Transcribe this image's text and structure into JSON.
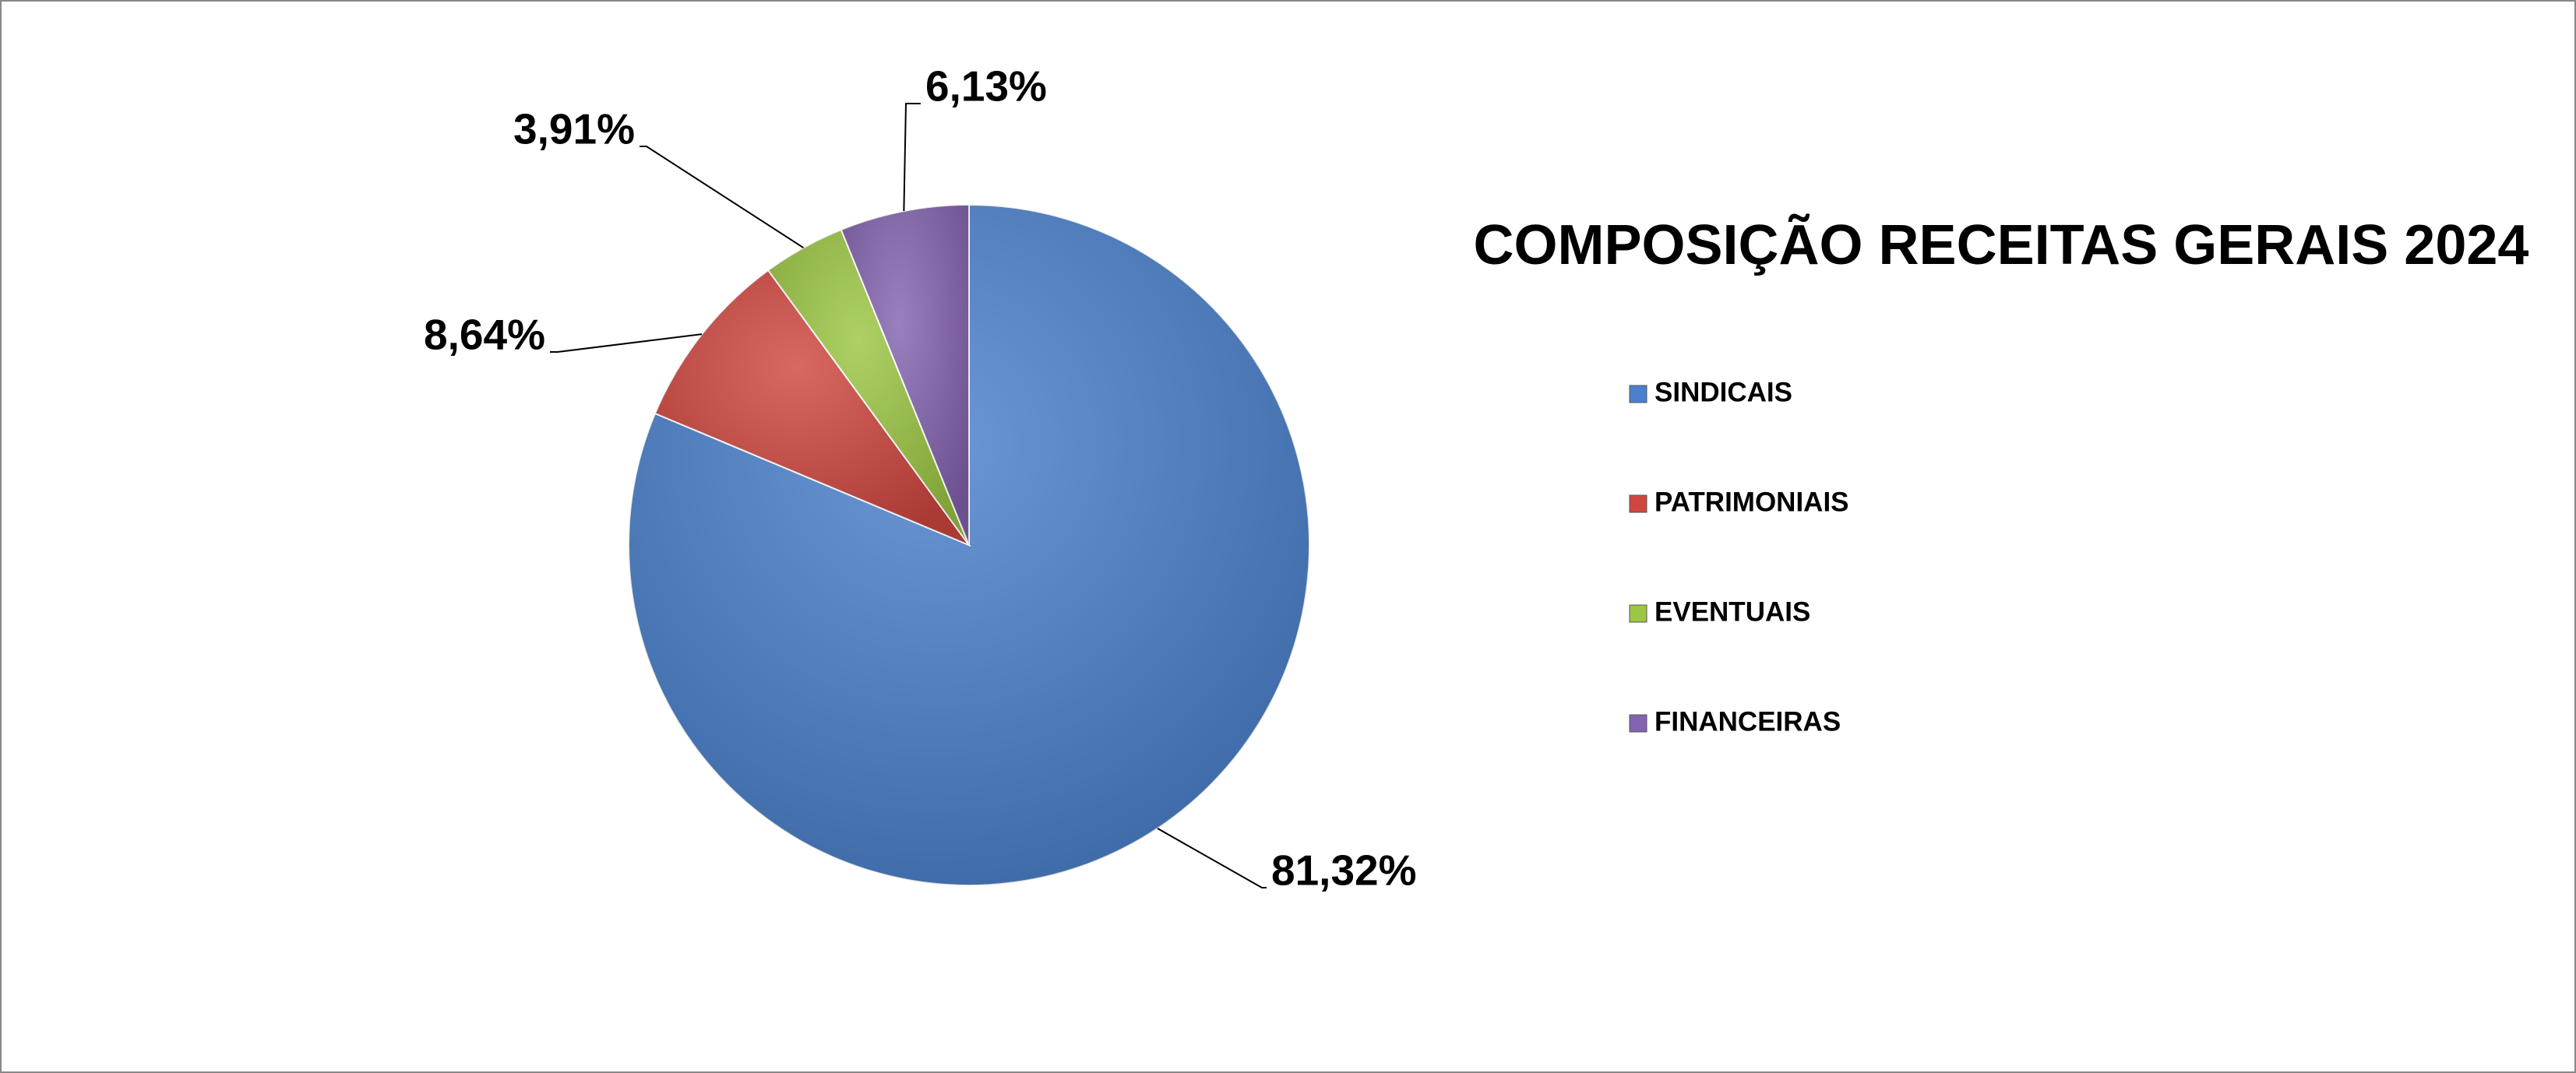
{
  "chart_data": {
    "type": "pie",
    "title": "COMPOSIÇÃO RECEITAS GERAIS 2024",
    "categories": [
      "SINDICAIS",
      "PATRIMONIAIS",
      "EVENTUAIS",
      "FINANCEIRAS"
    ],
    "values": [
      81.32,
      8.64,
      3.91,
      6.13
    ],
    "value_labels": [
      "81,32%",
      "8,64%",
      "3,91%",
      "6,13%"
    ],
    "colors": [
      "#4a80cc",
      "#d0463f",
      "#9cc643",
      "#8463b0"
    ],
    "legend": "right"
  }
}
